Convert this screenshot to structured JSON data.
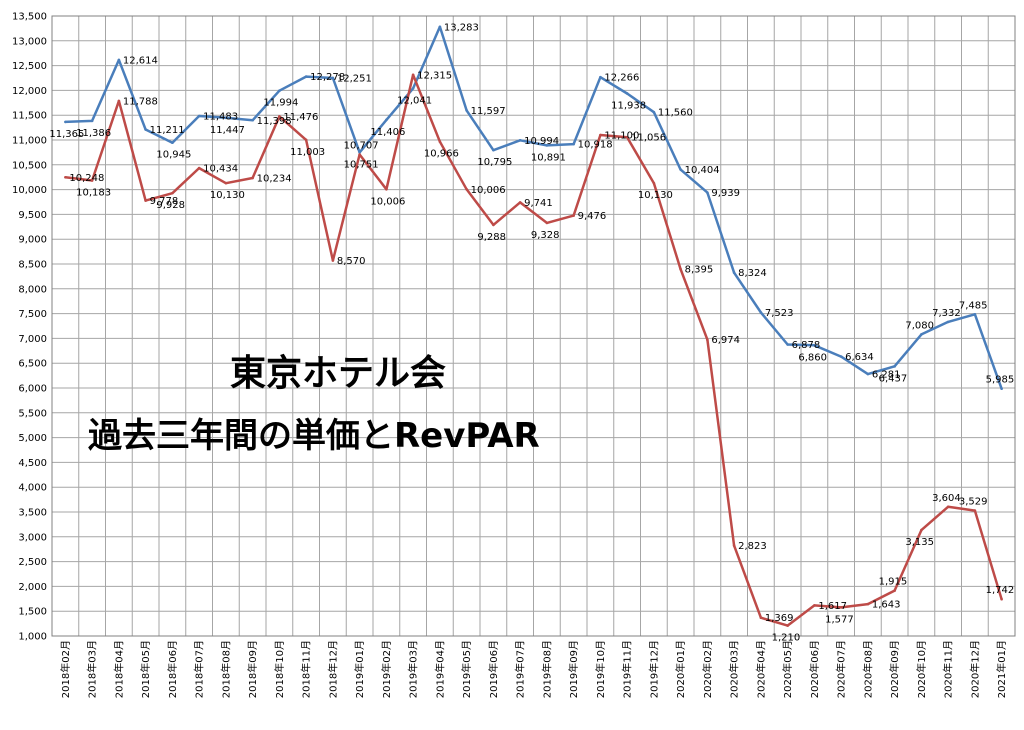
{
  "chart_data": {
    "type": "line",
    "title": "東京ホテル会",
    "subtitle": "過去三年間の単価とRevPAR",
    "xlabel": "",
    "ylabel": "",
    "ylim": [
      1000,
      13500
    ],
    "ytick_step": 500,
    "grid": true,
    "legend": "none",
    "categories": [
      "2018年02月",
      "2018年03月",
      "2018年04月",
      "2018年05月",
      "2018年06月",
      "2018年07月",
      "2018年08月",
      "2018年09月",
      "2018年10月",
      "2018年11月",
      "2018年12月",
      "2019年01月",
      "2019年02月",
      "2019年03月",
      "2019年04月",
      "2019年05月",
      "2019年06月",
      "2019年07月",
      "2019年08月",
      "2019年09月",
      "2019年10月",
      "2019年11月",
      "2019年12月",
      "2020年01月",
      "2020年02月",
      "2020年03月",
      "2020年04月",
      "2020年05月",
      "2020年06月",
      "2020年07月",
      "2020年08月",
      "2020年09月",
      "2020年10月",
      "2020年11月",
      "2020年12月",
      "2021年01月"
    ],
    "series": [
      {
        "color": "#4a7ebb",
        "values": [
          11365,
          11386,
          12614,
          11211,
          10945,
          11483,
          11447,
          11398,
          11994,
          12278,
          12251,
          10751,
          11406,
          12041,
          13283,
          11597,
          10795,
          10994,
          10891,
          10918,
          12266,
          11938,
          11560,
          10404,
          9939,
          8324,
          7523,
          6878,
          6860,
          6634,
          6281,
          6437,
          7080,
          7332,
          7485,
          5985
        ],
        "labels": [
          {
            "text": "11,365",
            "placement": "below"
          },
          {
            "text": "11,386",
            "placement": "below"
          },
          {
            "text": "12,614",
            "placement": "right"
          },
          {
            "text": "11,211",
            "placement": "right"
          },
          {
            "text": "10,945",
            "placement": "below"
          },
          {
            "text": "11,483",
            "placement": "right"
          },
          {
            "text": "11,447",
            "placement": "below"
          },
          {
            "text": "11,398",
            "placement": "right"
          },
          {
            "text": "11,994",
            "placement": "below"
          },
          {
            "text": "12,278",
            "placement": "right"
          },
          {
            "text": "12,251",
            "placement": "right"
          },
          {
            "text": "10,751",
            "placement": "below"
          },
          {
            "text": "11,406",
            "placement": "below"
          },
          {
            "text": "12,041",
            "placement": "below"
          },
          {
            "text": "13,283",
            "placement": "right"
          },
          {
            "text": "11,597",
            "placement": "right"
          },
          {
            "text": "10,795",
            "placement": "below"
          },
          {
            "text": "10,994",
            "placement": "right"
          },
          {
            "text": "10,891",
            "placement": "below"
          },
          {
            "text": "10,918",
            "placement": "right"
          },
          {
            "text": "12,266",
            "placement": "right"
          },
          {
            "text": "11,938",
            "placement": "below"
          },
          {
            "text": "11,560",
            "placement": "right"
          },
          {
            "text": "10,404",
            "placement": "right"
          },
          {
            "text": "9,939",
            "placement": "right"
          },
          {
            "text": "8,324",
            "placement": "right"
          },
          {
            "text": "7,523",
            "placement": "right"
          },
          {
            "text": "6,878",
            "placement": "right"
          },
          {
            "text": "6,860",
            "placement": "below"
          },
          {
            "text": "6,634",
            "placement": "right"
          },
          {
            "text": "6,281",
            "placement": "right"
          },
          {
            "text": "6,437",
            "placement": "below"
          },
          {
            "text": "7,080",
            "placement": "above"
          },
          {
            "text": "7,332",
            "placement": "above"
          },
          {
            "text": "7,485",
            "placement": "above"
          },
          {
            "text": "5,985",
            "placement": "above"
          }
        ]
      },
      {
        "color": "#be4b48",
        "values": [
          10248,
          10183,
          11788,
          9778,
          9928,
          10434,
          10130,
          10234,
          11476,
          11003,
          8570,
          10707,
          10006,
          12315,
          10966,
          10006,
          9288,
          9741,
          9328,
          9476,
          11100,
          11056,
          10130,
          8395,
          6974,
          2823,
          1369,
          1210,
          1617,
          1577,
          1643,
          1915,
          3135,
          3604,
          3529,
          1742
        ],
        "labels": [
          {
            "text": "10,248",
            "placement": "right"
          },
          {
            "text": "10,183",
            "placement": "below"
          },
          {
            "text": "11,788",
            "placement": "right"
          },
          {
            "text": "9,778",
            "placement": "right"
          },
          {
            "text": "9,928",
            "placement": "below"
          },
          {
            "text": "10,434",
            "placement": "right"
          },
          {
            "text": "10,130",
            "placement": "below"
          },
          {
            "text": "10,234",
            "placement": "right"
          },
          {
            "text": "11,476",
            "placement": "right"
          },
          {
            "text": "11,003",
            "placement": "below"
          },
          {
            "text": "8,570",
            "placement": "right"
          },
          {
            "text": "10,707",
            "placement": "above"
          },
          {
            "text": "10,006",
            "placement": "below"
          },
          {
            "text": "12,315",
            "placement": "right"
          },
          {
            "text": "10,966",
            "placement": "below"
          },
          {
            "text": "10,006",
            "placement": "right"
          },
          {
            "text": "9,288",
            "placement": "below"
          },
          {
            "text": "9,741",
            "placement": "right"
          },
          {
            "text": "9,328",
            "placement": "below"
          },
          {
            "text": "9,476",
            "placement": "right"
          },
          {
            "text": "11,100",
            "placement": "right"
          },
          {
            "text": "11,056",
            "placement": "right"
          },
          {
            "text": "10,130",
            "placement": "below"
          },
          {
            "text": "8,395",
            "placement": "right"
          },
          {
            "text": "6,974",
            "placement": "right"
          },
          {
            "text": "2,823",
            "placement": "right"
          },
          {
            "text": "1,369",
            "placement": "right"
          },
          {
            "text": "1,210",
            "placement": "below"
          },
          {
            "text": "1,617",
            "placement": "right"
          },
          {
            "text": "1,577",
            "placement": "below"
          },
          {
            "text": "1,643",
            "placement": "right"
          },
          {
            "text": "1,915",
            "placement": "above"
          },
          {
            "text": "3,135",
            "placement": "below"
          },
          {
            "text": "3,604",
            "placement": "above"
          },
          {
            "text": "3,529",
            "placement": "above"
          },
          {
            "text": "1,742",
            "placement": "above"
          }
        ]
      }
    ]
  }
}
